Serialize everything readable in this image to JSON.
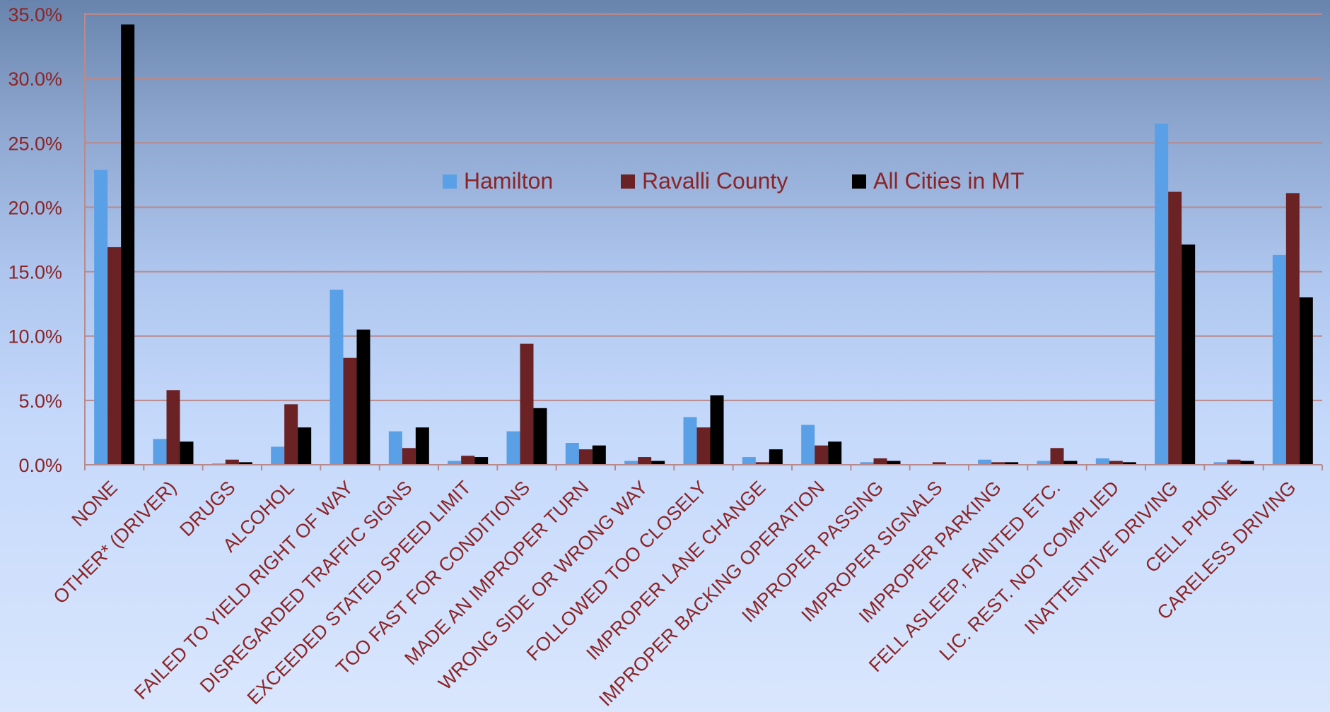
{
  "chart_data": {
    "type": "bar",
    "title": "",
    "xlabel": "",
    "ylabel": "",
    "ylim": [
      0,
      35
    ],
    "y_ticks": [
      "0.0%",
      "5.0%",
      "10.0%",
      "15.0%",
      "20.0%",
      "25.0%",
      "30.0%",
      "35.0%"
    ],
    "grid": true,
    "legend_position": "top-center",
    "categories": [
      "NONE",
      "OTHER* (DRIVER)",
      "DRUGS",
      "ALCOHOL",
      "FAILED TO YIELD RIGHT OF WAY",
      "DISREGARDED TRAFFIC SIGNS",
      "EXCEEDED STATED SPEED LIMIT",
      "TOO FAST FOR CONDITIONS",
      "MADE AN IMPROPER TURN",
      "WRONG SIDE OR WRONG WAY",
      "FOLLOWED TOO CLOSELY",
      "IMPROPER LANE CHANGE",
      "IMPROPER BACKING OPERATION",
      "IMPROPER PASSING",
      "IMPROPER SIGNALS",
      "IMPROPER PARKING",
      "FELL ASLEEP, FAINTED ETC.",
      "LIC. REST. NOT COMPLIED",
      "INATTENTIVE DRIVING",
      "CELL PHONE",
      "CARELESS DRIVING"
    ],
    "series": [
      {
        "name": "Hamilton",
        "color": "#5aa0e6",
        "values": [
          22.9,
          2.0,
          0.1,
          1.4,
          13.6,
          2.6,
          0.3,
          2.6,
          1.7,
          0.3,
          3.7,
          0.6,
          3.1,
          0.2,
          0.0,
          0.4,
          0.3,
          0.5,
          26.5,
          0.2,
          16.3
        ]
      },
      {
        "name": "Ravalli County",
        "color": "#6b2224",
        "values": [
          16.9,
          5.8,
          0.4,
          4.7,
          8.3,
          1.3,
          0.7,
          9.4,
          1.2,
          0.6,
          2.9,
          0.2,
          1.5,
          0.5,
          0.2,
          0.2,
          1.3,
          0.3,
          21.2,
          0.4,
          21.1
        ]
      },
      {
        "name": "All Cities in MT",
        "color": "#000000",
        "values": [
          34.2,
          1.8,
          0.2,
          2.9,
          10.5,
          2.9,
          0.6,
          4.4,
          1.5,
          0.3,
          5.4,
          1.2,
          1.8,
          0.3,
          0.0,
          0.2,
          0.3,
          0.2,
          17.1,
          0.3,
          13.0
        ]
      }
    ],
    "gridline_color": "#b88a8c",
    "text_color": "#8b2426"
  }
}
